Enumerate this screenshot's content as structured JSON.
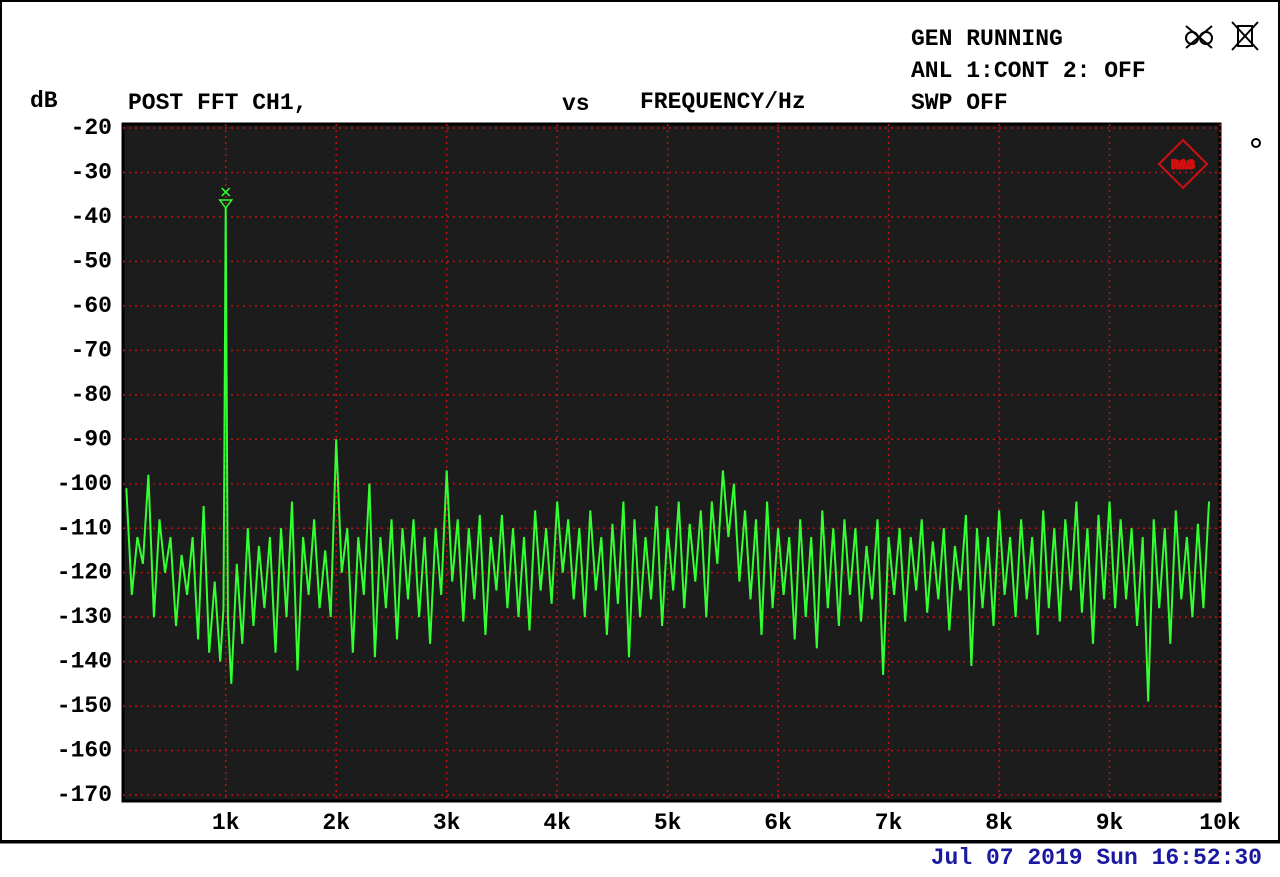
{
  "chart_data": {
    "type": "line",
    "title": "POST FFT CH1,",
    "x_label_prefix": "vs",
    "x_label": "FREQUENCY/Hz",
    "y_label": "dB",
    "status": [
      "GEN RUNNING",
      "ANL 1:CONT 2: OFF",
      "SWP OFF"
    ],
    "timestamp": "Jul 07 2019 Sun 16:52:30",
    "xlim": [
      70,
      10000
    ],
    "ylim": [
      -170,
      -20
    ],
    "xticks": [
      {
        "value": 1000,
        "label": "1k"
      },
      {
        "value": 2000,
        "label": "2k"
      },
      {
        "value": 3000,
        "label": "3k"
      },
      {
        "value": 4000,
        "label": "4k"
      },
      {
        "value": 5000,
        "label": "5k"
      },
      {
        "value": 6000,
        "label": "6k"
      },
      {
        "value": 7000,
        "label": "7k"
      },
      {
        "value": 8000,
        "label": "8k"
      },
      {
        "value": 9000,
        "label": "9k"
      },
      {
        "value": 10000,
        "label": "10k"
      }
    ],
    "yticks": [
      -20,
      -30,
      -40,
      -50,
      -60,
      -70,
      -80,
      -90,
      -100,
      -110,
      -120,
      -130,
      -140,
      -150,
      -160,
      -170
    ],
    "grid": true,
    "series": [
      {
        "name": "CH1",
        "color": "#33ff33",
        "x": [
          100,
          150,
          200,
          250,
          300,
          350,
          400,
          450,
          500,
          550,
          600,
          650,
          700,
          750,
          800,
          850,
          900,
          950,
          980,
          1000,
          1020,
          1050,
          1100,
          1150,
          1200,
          1250,
          1300,
          1350,
          1400,
          1450,
          1500,
          1550,
          1600,
          1650,
          1700,
          1750,
          1800,
          1850,
          1900,
          1950,
          2000,
          2050,
          2100,
          2150,
          2200,
          2250,
          2300,
          2350,
          2400,
          2450,
          2500,
          2550,
          2600,
          2650,
          2700,
          2750,
          2800,
          2850,
          2900,
          2950,
          3000,
          3050,
          3100,
          3150,
          3200,
          3250,
          3300,
          3350,
          3400,
          3450,
          3500,
          3550,
          3600,
          3650,
          3700,
          3750,
          3800,
          3850,
          3900,
          3950,
          4000,
          4050,
          4100,
          4150,
          4200,
          4250,
          4300,
          4350,
          4400,
          4450,
          4500,
          4550,
          4600,
          4650,
          4700,
          4750,
          4800,
          4850,
          4900,
          4950,
          5000,
          5050,
          5100,
          5150,
          5200,
          5250,
          5300,
          5350,
          5400,
          5450,
          5500,
          5550,
          5600,
          5650,
          5700,
          5750,
          5800,
          5850,
          5900,
          5950,
          6000,
          6050,
          6100,
          6150,
          6200,
          6250,
          6300,
          6350,
          6400,
          6450,
          6500,
          6550,
          6600,
          6650,
          6700,
          6750,
          6800,
          6850,
          6900,
          6950,
          7000,
          7050,
          7100,
          7150,
          7200,
          7250,
          7300,
          7350,
          7400,
          7450,
          7500,
          7550,
          7600,
          7650,
          7700,
          7750,
          7800,
          7850,
          7900,
          7950,
          8000,
          8050,
          8100,
          8150,
          8200,
          8250,
          8300,
          8350,
          8400,
          8450,
          8500,
          8550,
          8600,
          8650,
          8700,
          8750,
          8800,
          8850,
          8900,
          8950,
          9000,
          9050,
          9100,
          9150,
          9200,
          9250,
          9300,
          9350,
          9400,
          9450,
          9500,
          9550,
          9600,
          9650,
          9700,
          9750,
          9800,
          9850,
          9900
        ],
        "values": [
          -101,
          -125,
          -112,
          -118,
          -98,
          -130,
          -108,
          -120,
          -112,
          -132,
          -116,
          -125,
          -112,
          -135,
          -105,
          -138,
          -122,
          -140,
          -128,
          -38,
          -130,
          -145,
          -118,
          -136,
          -110,
          -132,
          -114,
          -128,
          -112,
          -138,
          -110,
          -130,
          -104,
          -142,
          -112,
          -125,
          -108,
          -128,
          -115,
          -130,
          -90,
          -120,
          -110,
          -138,
          -112,
          -125,
          -100,
          -139,
          -112,
          -128,
          -108,
          -135,
          -110,
          -126,
          -108,
          -130,
          -112,
          -136,
          -110,
          -125,
          -97,
          -122,
          -108,
          -131,
          -110,
          -126,
          -107,
          -134,
          -112,
          -124,
          -107,
          -128,
          -110,
          -130,
          -112,
          -133,
          -106,
          -124,
          -110,
          -127,
          -104,
          -120,
          -108,
          -126,
          -110,
          -130,
          -106,
          -124,
          -112,
          -134,
          -109,
          -127,
          -104,
          -139,
          -108,
          -130,
          -112,
          -126,
          -105,
          -132,
          -110,
          -124,
          -104,
          -128,
          -109,
          -122,
          -106,
          -130,
          -104,
          -118,
          -97,
          -112,
          -100,
          -122,
          -106,
          -126,
          -108,
          -134,
          -104,
          -128,
          -110,
          -125,
          -112,
          -135,
          -108,
          -130,
          -112,
          -137,
          -106,
          -128,
          -110,
          -132,
          -108,
          -125,
          -110,
          -131,
          -114,
          -126,
          -108,
          -143,
          -112,
          -125,
          -110,
          -131,
          -112,
          -124,
          -108,
          -129,
          -113,
          -126,
          -110,
          -133,
          -114,
          -124,
          -107,
          -141,
          -110,
          -128,
          -112,
          -132,
          -106,
          -125,
          -112,
          -130,
          -108,
          -126,
          -112,
          -134,
          -106,
          -128,
          -110,
          -131,
          -108,
          -124,
          -104,
          -129,
          -110,
          -136,
          -107,
          -126,
          -104,
          -128,
          -108,
          -126,
          -110,
          -132,
          -112,
          -149,
          -108,
          -128,
          -110,
          -136,
          -106,
          -126,
          -112,
          -130,
          -109,
          -128,
          -104
        ]
      }
    ]
  }
}
